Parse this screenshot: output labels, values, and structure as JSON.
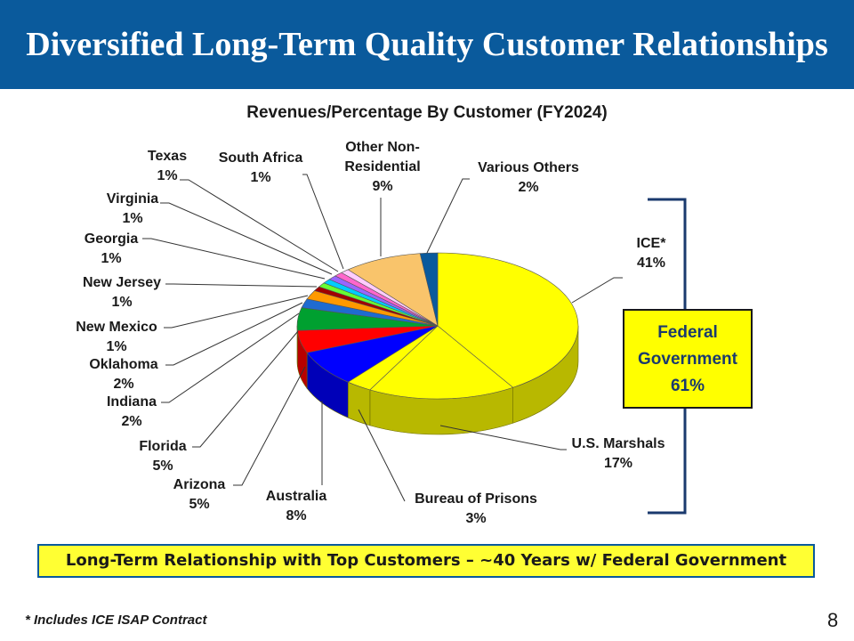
{
  "header": {
    "title": "Diversified Long-Term Quality Customer Relationships"
  },
  "chart_data": {
    "type": "pie",
    "title": "Revenues/Percentage By Customer (FY2024)",
    "slices": [
      {
        "name": "ICE*",
        "value": 41,
        "label": "41%",
        "color": "#ffff00"
      },
      {
        "name": "U.S. Marshals",
        "value": 17,
        "label": "17%",
        "color": "#ffff00"
      },
      {
        "name": "Bureau of Prisons",
        "value": 3,
        "label": "3%",
        "color": "#ffff00"
      },
      {
        "name": "Australia",
        "value": 8,
        "label": "8%",
        "color": "#0000ff"
      },
      {
        "name": "Arizona",
        "value": 5,
        "label": "5%",
        "color": "#ff0000"
      },
      {
        "name": "Florida",
        "value": 5,
        "label": "5%",
        "color": "#00a030"
      },
      {
        "name": "Indiana",
        "value": 2,
        "label": "2%",
        "color": "#1f6bd0"
      },
      {
        "name": "Oklahoma",
        "value": 2,
        "label": "2%",
        "color": "#ff9900"
      },
      {
        "name": "New Mexico",
        "value": 1,
        "label": "1%",
        "color": "#a00000"
      },
      {
        "name": "New Jersey",
        "value": 1,
        "label": "1%",
        "color": "#66ff33"
      },
      {
        "name": "Georgia",
        "value": 1,
        "label": "1%",
        "color": "#00ccff"
      },
      {
        "name": "Virginia",
        "value": 1,
        "label": "1%",
        "color": "#9966ff"
      },
      {
        "name": "Texas",
        "value": 1,
        "label": "1%",
        "color": "#ff66cc"
      },
      {
        "name": "South Africa",
        "value": 1,
        "label": "1%",
        "color": "#ffccff"
      },
      {
        "name": "Other Non-Residential",
        "value": 9,
        "label": "9%",
        "color": "#f9c46b"
      },
      {
        "name": "Various Others",
        "value": 2,
        "label": "2%",
        "color": "#0a5a9c"
      }
    ]
  },
  "labels": {
    "ice_name": "ICE*",
    "ice_pct": "41%",
    "usm_name": "U.S. Marshals",
    "usm_pct": "17%",
    "bop_name": "Bureau of Prisons",
    "bop_pct": "3%",
    "australia_name": "Australia",
    "australia_pct": "8%",
    "arizona_name": "Arizona",
    "arizona_pct": "5%",
    "florida_name": "Florida",
    "florida_pct": "5%",
    "indiana_name": "Indiana",
    "indiana_pct": "2%",
    "oklahoma_name": "Oklahoma",
    "oklahoma_pct": "2%",
    "newmexico_name": "New Mexico",
    "newmexico_pct": "1%",
    "newjersey_name": "New Jersey",
    "newjersey_pct": "1%",
    "georgia_name": "Georgia",
    "georgia_pct": "1%",
    "virginia_name": "Virginia",
    "virginia_pct": "1%",
    "texas_name": "Texas",
    "texas_pct": "1%",
    "southafrica_name": "South Africa",
    "southafrica_pct": "1%",
    "other_name_1": "Other Non-",
    "other_name_2": "Residential",
    "other_pct": "9%",
    "various_name": "Various Others",
    "various_pct": "2%"
  },
  "federal": {
    "line1": "Federal",
    "line2": "Government",
    "line3": "61%",
    "color": "#ffff00"
  },
  "banner": {
    "text": "Long-Term Relationship with Top Customers – ~40 Years w/ Federal Government"
  },
  "footnote": "* Includes ICE ISAP Contract",
  "page_number": "8"
}
